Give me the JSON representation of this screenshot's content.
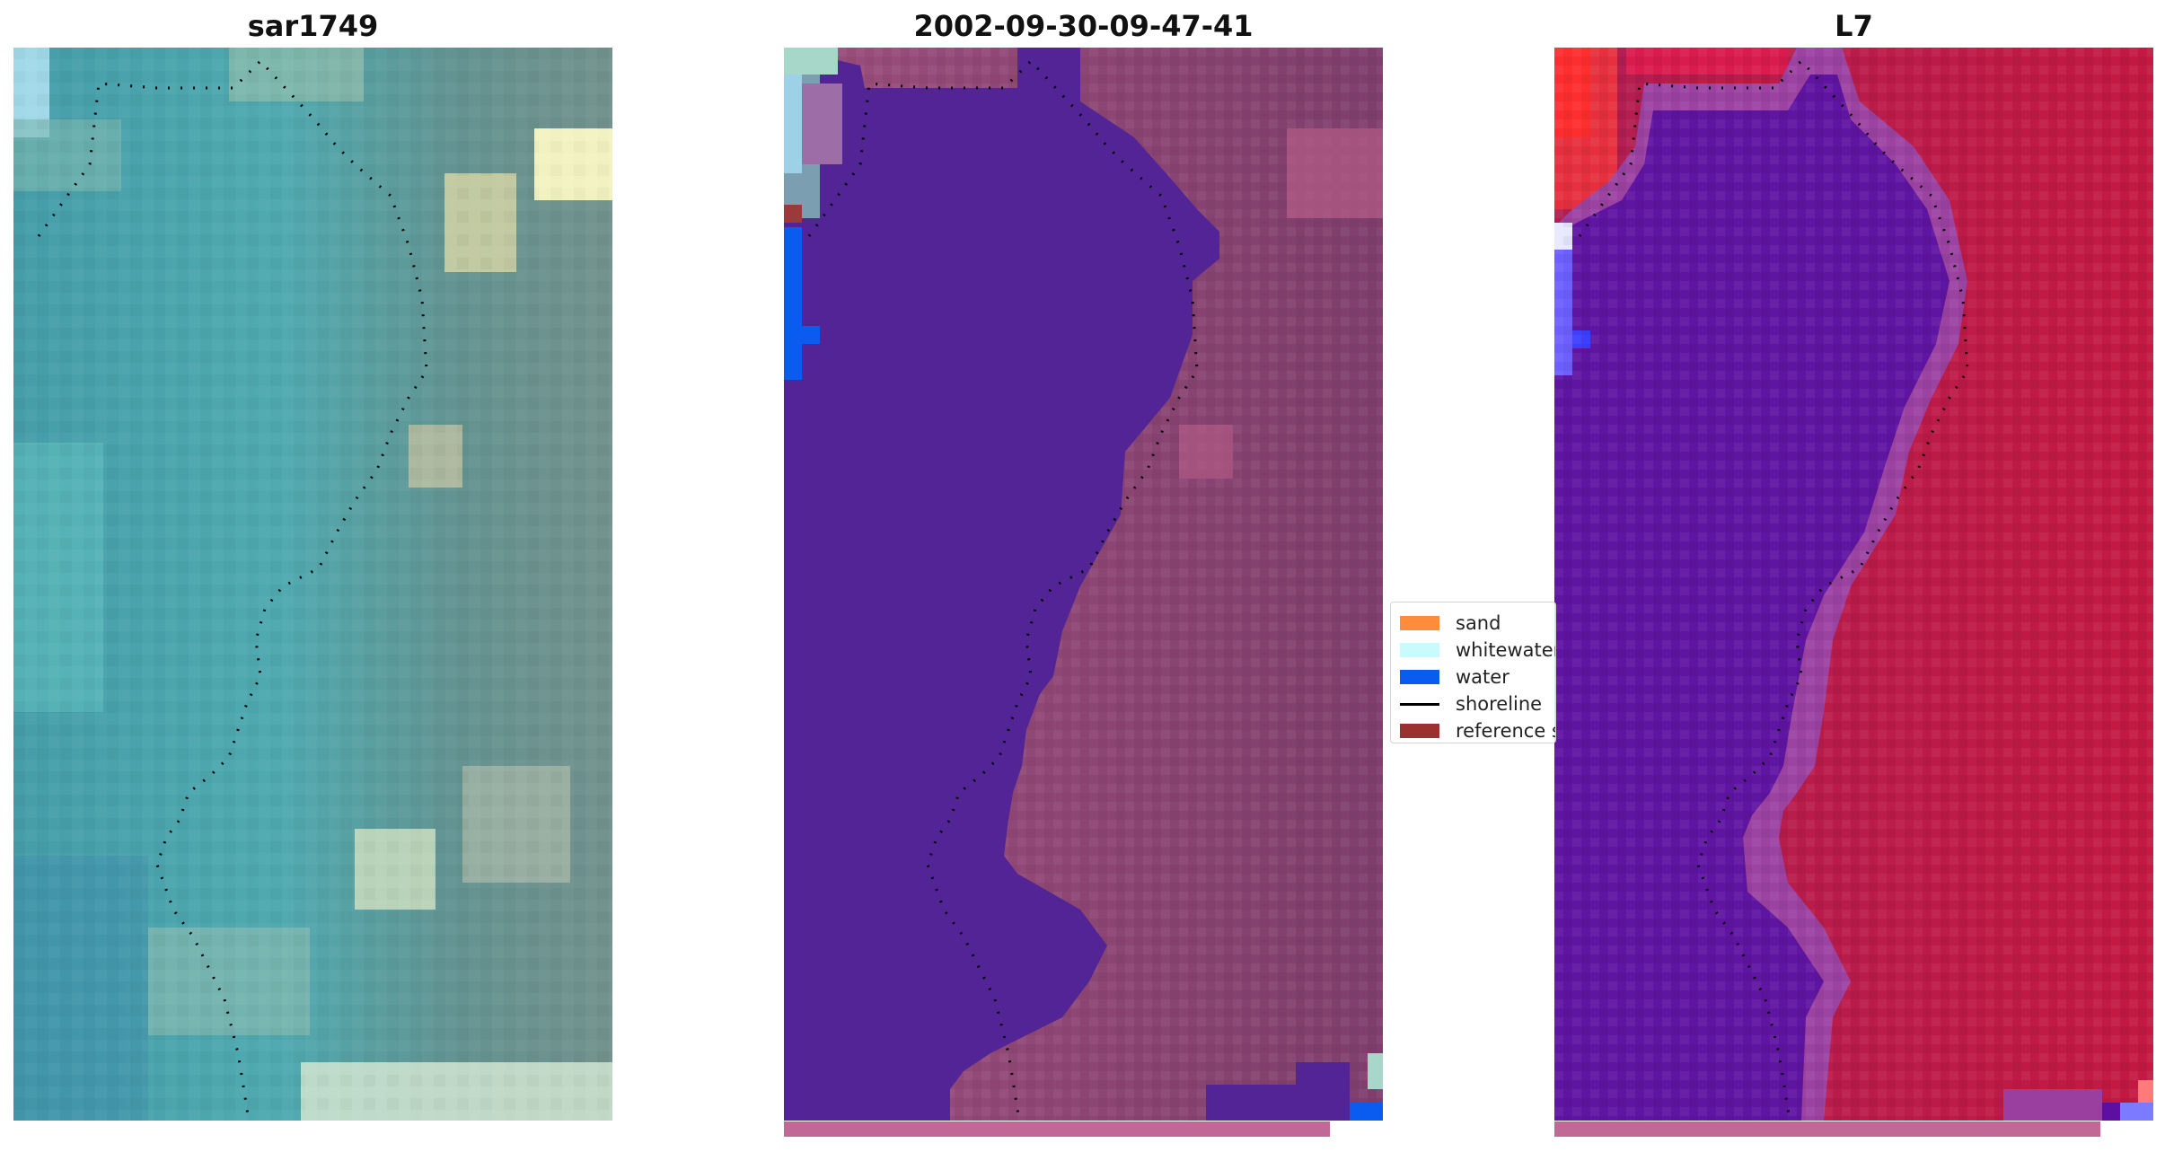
{
  "panels": [
    {
      "id": "sar",
      "title": "sar1749"
    },
    {
      "id": "classified",
      "title": "2002-09-30-09-47-41"
    },
    {
      "id": "index",
      "title": "L7"
    }
  ],
  "legend": {
    "items": [
      {
        "label": "sand",
        "color": "#ff8c3a",
        "kind": "patch"
      },
      {
        "label": "whitewater",
        "color": "#c8fcfc",
        "kind": "patch"
      },
      {
        "label": "water",
        "color": "#0a5cf0",
        "kind": "patch"
      },
      {
        "label": "shoreline",
        "color": "#000000",
        "kind": "line"
      },
      {
        "label": "reference shoreline",
        "color": "#9b3030",
        "kind": "patch"
      }
    ]
  },
  "colors": {
    "water_class": "#522496",
    "land_tint": "#8e3f72",
    "index_water": "#5c0fa0",
    "index_land": "#c81845",
    "bottom_strip": "#c06896"
  }
}
